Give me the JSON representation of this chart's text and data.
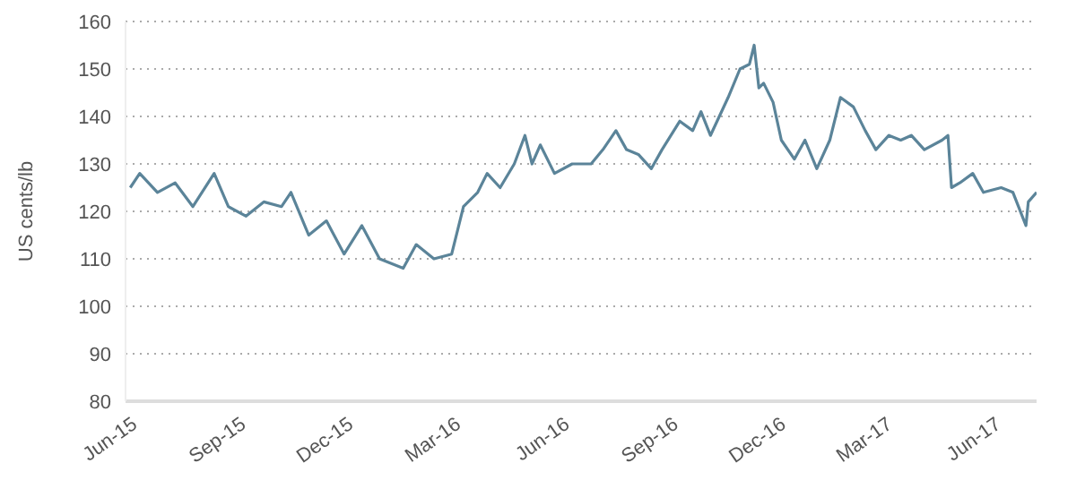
{
  "chart_data": {
    "type": "line",
    "ylabel": "US cents/lb",
    "x": [
      "2015-06-01",
      "2015-06-09",
      "2015-06-24",
      "2015-07-09",
      "2015-07-24",
      "2015-08-11",
      "2015-08-23",
      "2015-09-07",
      "2015-09-22",
      "2015-10-07",
      "2015-10-15",
      "2015-10-30",
      "2015-11-14",
      "2015-11-29",
      "2015-12-14",
      "2015-12-29",
      "2016-01-18",
      "2016-01-29",
      "2016-02-13",
      "2016-02-28",
      "2016-03-09",
      "2016-03-21",
      "2016-03-29",
      "2016-04-09",
      "2016-04-21",
      "2016-04-30",
      "2016-05-06",
      "2016-05-13",
      "2016-05-25",
      "2016-06-09",
      "2016-06-25",
      "2016-07-05",
      "2016-07-16",
      "2016-07-25",
      "2016-08-04",
      "2016-08-15",
      "2016-08-24",
      "2016-09-08",
      "2016-09-19",
      "2016-09-26",
      "2016-10-04",
      "2016-10-19",
      "2016-10-29",
      "2016-11-06",
      "2016-11-10",
      "2016-11-14",
      "2016-11-18",
      "2016-11-26",
      "2016-12-03",
      "2016-12-14",
      "2016-12-23",
      "2017-01-02",
      "2017-01-13",
      "2017-01-22",
      "2017-02-02",
      "2017-02-12",
      "2017-02-21",
      "2017-03-04",
      "2017-03-14",
      "2017-03-23",
      "2017-04-03",
      "2017-04-18",
      "2017-04-23",
      "2017-04-26",
      "2017-05-03",
      "2017-05-14",
      "2017-05-23",
      "2017-06-07",
      "2017-06-17",
      "2017-06-28",
      "2017-06-30",
      "2017-07-07"
    ],
    "series": [
      {
        "color": "#5b8499",
        "values": [
          125,
          128,
          124,
          126,
          121,
          128,
          121,
          119,
          122,
          121,
          124,
          115,
          118,
          111,
          117,
          110,
          108,
          113,
          110,
          111,
          121,
          124,
          128,
          125,
          130,
          136,
          130,
          134,
          128,
          130,
          130,
          133,
          137,
          133,
          132,
          129,
          133,
          139,
          137,
          141,
          136,
          144,
          150,
          151,
          155,
          146,
          147,
          143,
          135,
          131,
          135,
          129,
          135,
          144,
          142,
          137,
          133,
          136,
          135,
          136,
          133,
          135,
          136,
          125,
          126,
          128,
          124,
          125,
          124,
          117,
          122,
          124
        ]
      }
    ],
    "xlim": [
      "2015-05-28",
      "2017-07-07"
    ],
    "xticks": [
      {
        "value": "2015-06-01",
        "label": "Jun-15"
      },
      {
        "value": "2015-09-01",
        "label": "Sep-15"
      },
      {
        "value": "2015-12-01",
        "label": "Dec-15"
      },
      {
        "value": "2016-03-01",
        "label": "Mar-16"
      },
      {
        "value": "2016-06-01",
        "label": "Jun-16"
      },
      {
        "value": "2016-09-01",
        "label": "Sep-16"
      },
      {
        "value": "2016-12-01",
        "label": "Dec-16"
      },
      {
        "value": "2017-03-01",
        "label": "Mar-17"
      },
      {
        "value": "2017-06-01",
        "label": "Jun-17"
      }
    ],
    "ylim": [
      80,
      160
    ],
    "yticks": [
      80,
      90,
      100,
      110,
      120,
      130,
      140,
      150,
      160
    ],
    "grid": "y",
    "legend": false,
    "marker": "none",
    "line_style": "solid"
  }
}
